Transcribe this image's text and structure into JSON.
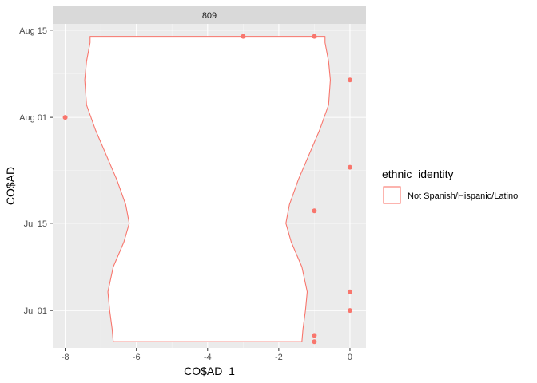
{
  "chart_data": {
    "type": "scatter",
    "overlay": "violin",
    "facet_label": "809",
    "xlabel": "CO$AD_1",
    "ylabel": "CO$AD",
    "xlim": [
      -8.35,
      0.45
    ],
    "ylim": [
      "2024-06-25",
      "2024-08-16"
    ],
    "x_ticks": [
      -8,
      -6,
      -4,
      -2,
      0
    ],
    "x_tick_labels": [
      "-8",
      "-6",
      "-4",
      "-2",
      "0"
    ],
    "y_ticks": [
      "2024-07-01",
      "2024-07-15",
      "2024-08-01",
      "2024-08-15"
    ],
    "y_tick_labels": [
      "Jul 01",
      "Jul 15",
      "Aug 01",
      "Aug 15"
    ],
    "grid": true,
    "legend": {
      "title": "ethnic_identity",
      "placement": "right",
      "entries": [
        {
          "label": "Not Spanish/Hispanic/Latino",
          "color": "#F8766D"
        }
      ]
    },
    "series": [
      {
        "name": "Not Spanish/Hispanic/Latino",
        "color": "#F8766D",
        "points": [
          {
            "x": -8,
            "y": "2024-08-01"
          },
          {
            "x": -3,
            "y": "2024-08-14"
          },
          {
            "x": -1,
            "y": "2024-08-14"
          },
          {
            "x": 0,
            "y": "2024-08-07"
          },
          {
            "x": 0,
            "y": "2024-07-24"
          },
          {
            "x": -1,
            "y": "2024-07-17"
          },
          {
            "x": 0,
            "y": "2024-07-04"
          },
          {
            "x": 0,
            "y": "2024-07-01"
          },
          {
            "x": -1,
            "y": "2024-06-27"
          },
          {
            "x": -1,
            "y": "2024-06-26"
          }
        ]
      }
    ],
    "violin": {
      "color": "#F8766D",
      "fill": "#FFFFFF",
      "center_x": -4,
      "profile": [
        {
          "y": "2024-06-26",
          "half_width": 2.65
        },
        {
          "y": "2024-06-28",
          "half_width": 2.68
        },
        {
          "y": "2024-07-01",
          "half_width": 2.75
        },
        {
          "y": "2024-07-04",
          "half_width": 2.8
        },
        {
          "y": "2024-07-08",
          "half_width": 2.65
        },
        {
          "y": "2024-07-12",
          "half_width": 2.35
        },
        {
          "y": "2024-07-15",
          "half_width": 2.2
        },
        {
          "y": "2024-07-18",
          "half_width": 2.3
        },
        {
          "y": "2024-07-22",
          "half_width": 2.55
        },
        {
          "y": "2024-07-26",
          "half_width": 2.85
        },
        {
          "y": "2024-07-30",
          "half_width": 3.15
        },
        {
          "y": "2024-08-03",
          "half_width": 3.4
        },
        {
          "y": "2024-08-07",
          "half_width": 3.45
        },
        {
          "y": "2024-08-10",
          "half_width": 3.4
        },
        {
          "y": "2024-08-13",
          "half_width": 3.3
        },
        {
          "y": "2024-08-14",
          "half_width": 3.3
        }
      ]
    }
  }
}
